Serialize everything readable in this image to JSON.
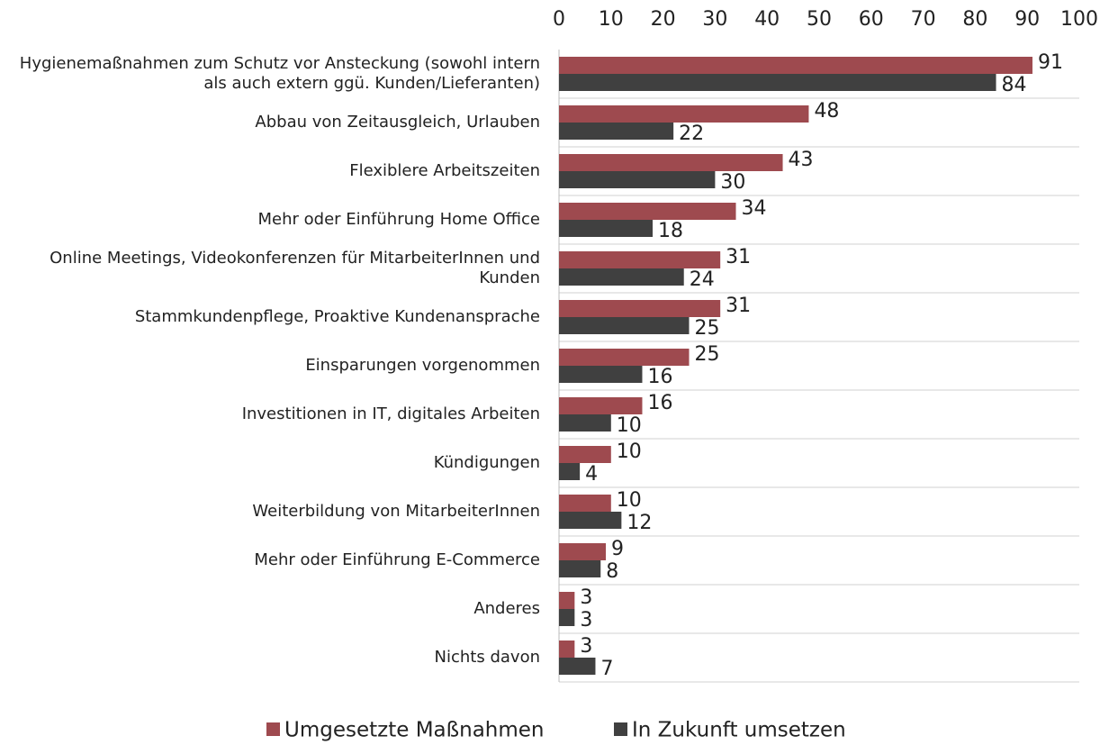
{
  "chart_data": {
    "type": "barh",
    "categories": [
      "Hygienemaßnahmen zum Schutz vor Ansteckung (sowohl intern als auch extern ggü. Kunden/Lieferanten)",
      "Abbau von Zeitausgleich, Urlauben",
      "Flexiblere Arbeitszeiten",
      "Mehr oder Einführung Home Office",
      "Online Meetings, Videokonferenzen für MitarbeiterInnen und Kunden",
      "Stammkundenpflege, Proaktive Kundenansprache",
      "Einsparungen vorgenommen",
      "Investitionen in IT, digitales Arbeiten",
      "Kündigungen",
      "Weiterbildung von MitarbeiterInnen",
      "Mehr oder Einführung E-Commerce",
      "Anderes",
      "Nichts davon"
    ],
    "series": [
      {
        "name": "Umgesetzte Maßnahmen",
        "color": "#9e4a4f",
        "values": [
          91,
          48,
          43,
          34,
          31,
          31,
          25,
          16,
          10,
          10,
          9,
          3,
          3
        ]
      },
      {
        "name": "In Zukunft umsetzen",
        "color": "#404040",
        "values": [
          84,
          22,
          30,
          18,
          24,
          25,
          16,
          10,
          4,
          12,
          8,
          3,
          7
        ]
      }
    ],
    "xlim": [
      0,
      100
    ],
    "xticks": [
      0,
      10,
      20,
      30,
      40,
      50,
      60,
      70,
      80,
      90,
      100
    ],
    "grid": true,
    "legend": "bottom"
  }
}
